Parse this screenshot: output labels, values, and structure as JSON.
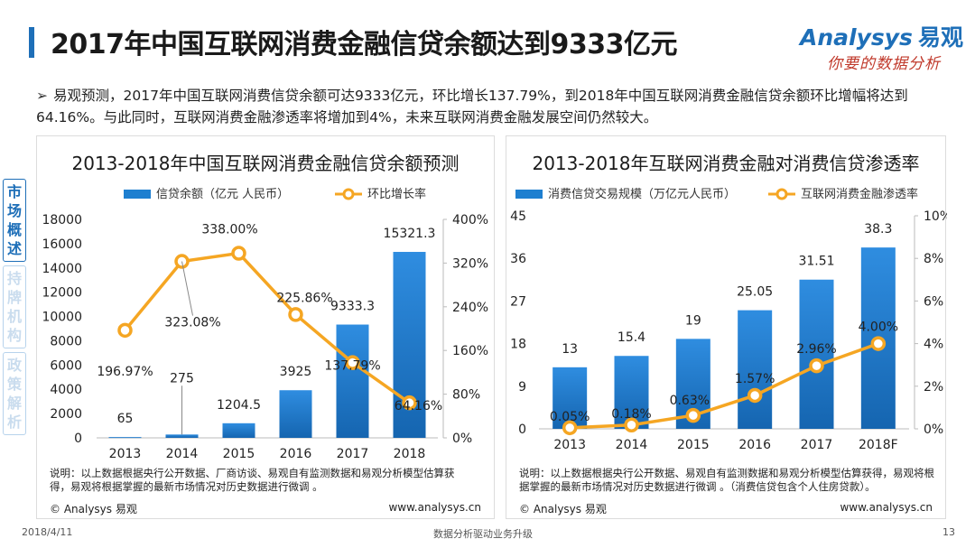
{
  "header": {
    "title": "2017年中国互联网消费金融信贷余额达到9333亿元",
    "logo_main": "Analysys",
    "logo_cn": "易观",
    "logo_sub": "你要的数据分析"
  },
  "summary": {
    "arrow": "➢",
    "text": "易观预测，2017年中国互联网消费信贷余额可达9333亿元，环比增长137.79%，到2018年中国互联网消费金融信贷余额环比增幅将达到64.16%。与此同时，互联网消费金融渗透率将增加到4%，未来互联网消费金融发展空间仍然较大。"
  },
  "side_tabs": [
    {
      "label": "市场概述",
      "active": true
    },
    {
      "label": "持牌机构",
      "active": false
    },
    {
      "label": "政策解析",
      "active": false
    }
  ],
  "left_panel": {
    "note": "说明：以上数据根据央行公开数据、厂商访谈、易观自有监测数据和易观分析模型估算获得，易观将根据掌握的最新市场情况对历史数据进行微调 。",
    "source": "© Analysys 易观",
    "url": "www.analysys.cn"
  },
  "right_panel": {
    "note": "说明：以上数据根据央行公开数据、易观自有监测数据和易观分析模型估算获得，易观将根据掌握的最新市场情况对历史数据进行微调 。（消费信贷包含个人住房贷款）。",
    "source": "© Analysys 易观",
    "url": "www.analysys.cn"
  },
  "footer": {
    "date": "2018/4/11",
    "center": "数据分析驱动业务升级",
    "page": "13"
  },
  "colors": {
    "bar": "#1e7fd0",
    "line": "#f5a623",
    "accent": "#1e6fb8"
  },
  "chart_data": [
    {
      "type": "bar",
      "title": "2013-2018年中国互联网消费金融信贷余额预测",
      "categories": [
        "2013",
        "2014",
        "2015",
        "2016",
        "2017",
        "2018"
      ],
      "series": [
        {
          "name": "信贷余额（亿元 人民币）",
          "type": "bar",
          "axis": "left",
          "values": [
            65,
            275,
            1204.5,
            3925,
            9333.3,
            15321.3
          ],
          "labels": [
            "65",
            "275",
            "1204.5",
            "3925",
            "9333.3",
            "15321.3"
          ]
        },
        {
          "name": "环比增长率",
          "type": "line",
          "axis": "right",
          "values": [
            196.97,
            323.08,
            338.0,
            225.86,
            137.79,
            64.16
          ],
          "labels": [
            "196.97%",
            "323.08%",
            "338.00%",
            "225.86%",
            "137.79%",
            "64.16%"
          ]
        }
      ],
      "ylim": [
        0,
        18000
      ],
      "yticks": [
        "0",
        "2000",
        "4000",
        "6000",
        "8000",
        "10000",
        "12000",
        "14000",
        "16000",
        "18000"
      ],
      "y2lim": [
        0,
        400
      ],
      "y2ticks": [
        "0%",
        "80%",
        "160%",
        "240%",
        "320%",
        "400%"
      ],
      "legend": "top"
    },
    {
      "type": "bar",
      "title": "2013-2018年互联网消费金融对消费信贷渗透率",
      "categories": [
        "2013",
        "2014",
        "2015",
        "2016",
        "2017",
        "2018F"
      ],
      "series": [
        {
          "name": "消费信贷交易规模（万亿元人民币）",
          "type": "bar",
          "axis": "left",
          "values": [
            13,
            15.4,
            19,
            25.05,
            31.51,
            38.3
          ],
          "labels": [
            "13",
            "15.4",
            "19",
            "25.05",
            "31.51",
            "38.3"
          ]
        },
        {
          "name": "互联网消费金融渗透率",
          "type": "line",
          "axis": "right",
          "values": [
            0.05,
            0.18,
            0.63,
            1.57,
            2.96,
            4.0
          ],
          "labels": [
            "0.05%",
            "0.18%",
            "0.63%",
            "1.57%",
            "2.96%",
            "4.00%"
          ]
        }
      ],
      "ylim": [
        0,
        45
      ],
      "yticks": [
        "0",
        "9",
        "18",
        "27",
        "36",
        "45"
      ],
      "y2lim": [
        0,
        10
      ],
      "y2ticks": [
        "0%",
        "2%",
        "4%",
        "6%",
        "8%",
        "10%"
      ],
      "legend": "top"
    }
  ]
}
